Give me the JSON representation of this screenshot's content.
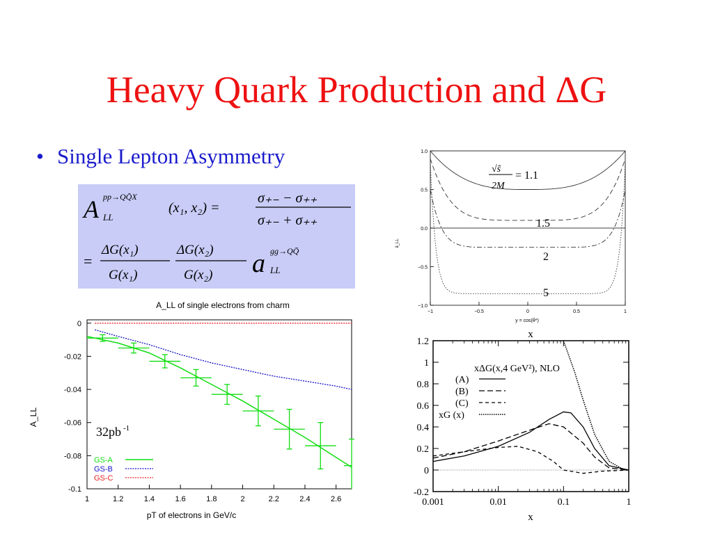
{
  "slide": {
    "title": "Heavy Quark Production and ΔG",
    "bullet": "Single Lepton Asymmetry"
  },
  "formula": {
    "lhs": "A",
    "lhs_sup": "pp→QQ̄X",
    "lhs_sub": "LL",
    "args": "(x₁, x₂) =",
    "num": "σ₊₋ − σ₊₊",
    "den": "σ₊₋ + σ₊₊",
    "eq2": "=",
    "f1_num": "ΔG(x₁)",
    "f1_den": "G(x₁)",
    "f2_num": "ΔG(x₂)",
    "f2_den": "G(x₂)",
    "a": "a",
    "a_sup": "gg→QQ̄",
    "a_sub": "LL"
  },
  "colors": {
    "title": "#ee1111",
    "bullet": "#1a1acc",
    "formula_bg": "#c8ccf6",
    "gs_a": "#11dd11",
    "gs_b": "#1111cc",
    "gs_c": "#ee2222"
  },
  "chart_data": [
    {
      "id": "single-electron-asymmetry",
      "type": "line",
      "title": "A_LL of single electrons from charm",
      "xlabel": "pT of electrons in GeV/c",
      "ylabel": "A_LL",
      "xlim": [
        1,
        2.7
      ],
      "ylim": [
        -0.1,
        0.002
      ],
      "xticks": [
        "1",
        "1.2",
        "1.4",
        "1.6",
        "1.8",
        "2",
        "2.2",
        "2.4",
        "2.6"
      ],
      "yticks": [
        "0",
        "-0.02",
        "-0.04",
        "-0.06",
        "-0.08",
        "-0.1"
      ],
      "annotation": "32pb",
      "annotation_sup": "-1",
      "grid": false,
      "legend_position": "bottom-left",
      "series": [
        {
          "name": "GS-A",
          "style": "solid",
          "x": [
            1.0,
            1.2,
            1.4,
            1.6,
            1.8,
            2.0,
            2.2,
            2.4,
            2.6,
            2.7
          ],
          "y": [
            -0.008,
            -0.012,
            -0.018,
            -0.027,
            -0.037,
            -0.047,
            -0.058,
            -0.069,
            -0.081,
            -0.087
          ]
        },
        {
          "name": "GS-B",
          "style": "dotted",
          "x": [
            1.05,
            1.2,
            1.4,
            1.6,
            1.8,
            2.0,
            2.2,
            2.4,
            2.6,
            2.7
          ],
          "y": [
            -0.004,
            -0.008,
            -0.013,
            -0.019,
            -0.024,
            -0.028,
            -0.032,
            -0.035,
            -0.038,
            -0.04
          ]
        },
        {
          "name": "GS-C",
          "style": "dotted",
          "x": [
            1.05,
            2.7
          ],
          "y": [
            0.0,
            0.0
          ]
        },
        {
          "name": "",
          "style": "errorbar",
          "x": [
            1.1,
            1.3,
            1.5,
            1.7,
            1.9,
            2.1,
            2.3,
            2.5,
            2.7
          ],
          "y": [
            -0.009,
            -0.015,
            -0.023,
            -0.033,
            -0.043,
            -0.053,
            -0.064,
            -0.074,
            -0.086
          ],
          "yerr": [
            0.002,
            0.003,
            0.004,
            0.005,
            0.006,
            0.009,
            0.012,
            0.014,
            0.016
          ],
          "xerr": [
            0.1,
            0.1,
            0.1,
            0.1,
            0.1,
            0.1,
            0.1,
            0.1,
            0.05
          ]
        }
      ]
    },
    {
      "id": "parton-asymmetry",
      "type": "line",
      "xlabel": "y = cos(θ*)",
      "ylabel": "â_LL",
      "title_above": "",
      "xlim": [
        -1,
        1
      ],
      "ylim": [
        -1.0,
        1.0
      ],
      "xticks": [
        "−1",
        "−0.5",
        "0",
        "0.5",
        "1"
      ],
      "yticks": [
        "1.0",
        "0.5",
        "0.0",
        "−0.5",
        "−1.0"
      ],
      "curve_labels": [
        "= 1.1",
        "1.5",
        "2",
        "5"
      ],
      "ratio_num": "√ŝ",
      "ratio_den": "2M",
      "series": [
        {
          "name": "1.1",
          "style": "solid",
          "edge": 1.0,
          "center": 0.5
        },
        {
          "name": "1.5",
          "style": "dashed",
          "edge": 0.9,
          "center": 0.1
        },
        {
          "name": "2",
          "style": "dashdot",
          "edge": 0.5,
          "center": -0.25
        },
        {
          "name": "5",
          "style": "dotted",
          "edge": 0.85,
          "center": -0.85
        }
      ]
    },
    {
      "id": "polarized-gluon",
      "type": "line",
      "title_above": "x",
      "xlabel": "x",
      "xscale": "log",
      "xlim": [
        0.001,
        1
      ],
      "ylim": [
        -0.2,
        1.2
      ],
      "xticks": [
        "0.001",
        "0.01",
        "0.1",
        "1"
      ],
      "yticks": [
        "1.2",
        "1",
        "0.8",
        "0.6",
        "0.4",
        "0.2",
        "0",
        "-0.2"
      ],
      "legend_title": "xΔG(x,4 GeV²), NLO",
      "series": [
        {
          "name": "(A)",
          "style": "solid",
          "x": [
            0.001,
            0.003,
            0.01,
            0.03,
            0.06,
            0.1,
            0.13,
            0.2,
            0.3,
            0.5,
            1
          ],
          "y": [
            0.08,
            0.13,
            0.22,
            0.35,
            0.47,
            0.54,
            0.53,
            0.4,
            0.2,
            0.04,
            0
          ]
        },
        {
          "name": "(B)",
          "style": "dashed",
          "x": [
            0.001,
            0.003,
            0.01,
            0.03,
            0.06,
            0.1,
            0.2,
            0.3,
            0.5,
            1
          ],
          "y": [
            0.11,
            0.17,
            0.27,
            0.37,
            0.43,
            0.4,
            0.25,
            0.12,
            0.02,
            0
          ]
        },
        {
          "name": "(C)",
          "style": "dashed-fine",
          "x": [
            0.001,
            0.003,
            0.01,
            0.02,
            0.04,
            0.07,
            0.1,
            0.2,
            0.4,
            1
          ],
          "y": [
            0.13,
            0.17,
            0.21,
            0.22,
            0.17,
            0.08,
            0.0,
            -0.03,
            -0.01,
            0
          ]
        },
        {
          "name": "xG (x)",
          "style": "dotted",
          "x": [
            0.1,
            0.15,
            0.2,
            0.3,
            0.5,
            0.8,
            1
          ],
          "y": [
            1.2,
            0.9,
            0.65,
            0.33,
            0.08,
            0.01,
            0
          ]
        }
      ]
    }
  ]
}
